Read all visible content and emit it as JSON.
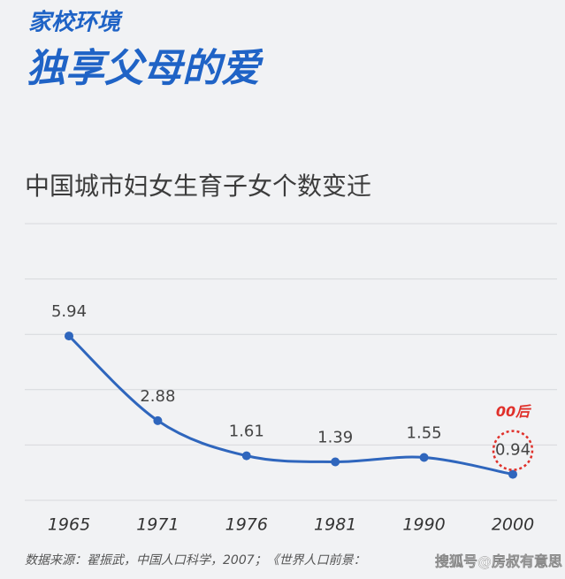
{
  "header": {
    "section": "家校环境",
    "title": "独享父母的爱"
  },
  "chart_data": {
    "type": "line",
    "title": "中国城市妇女生育子女个数变迁",
    "categories": [
      "1965",
      "1971",
      "1976",
      "1981",
      "1990",
      "2000"
    ],
    "values": [
      5.94,
      2.88,
      1.61,
      1.39,
      1.55,
      0.94
    ],
    "color": "#2f66bd",
    "ylim": [
      0,
      10
    ],
    "yticks": [
      0,
      2,
      4,
      6,
      8,
      10
    ],
    "grid": true,
    "tick_labels": false,
    "annotation": {
      "text": "00后",
      "index": 5,
      "color": "#e0302a"
    },
    "source": "数据来源：翟振武，中国人口科学，2007；《世界人口前景："
  },
  "watermark": "搜狐号@房叔有意思"
}
